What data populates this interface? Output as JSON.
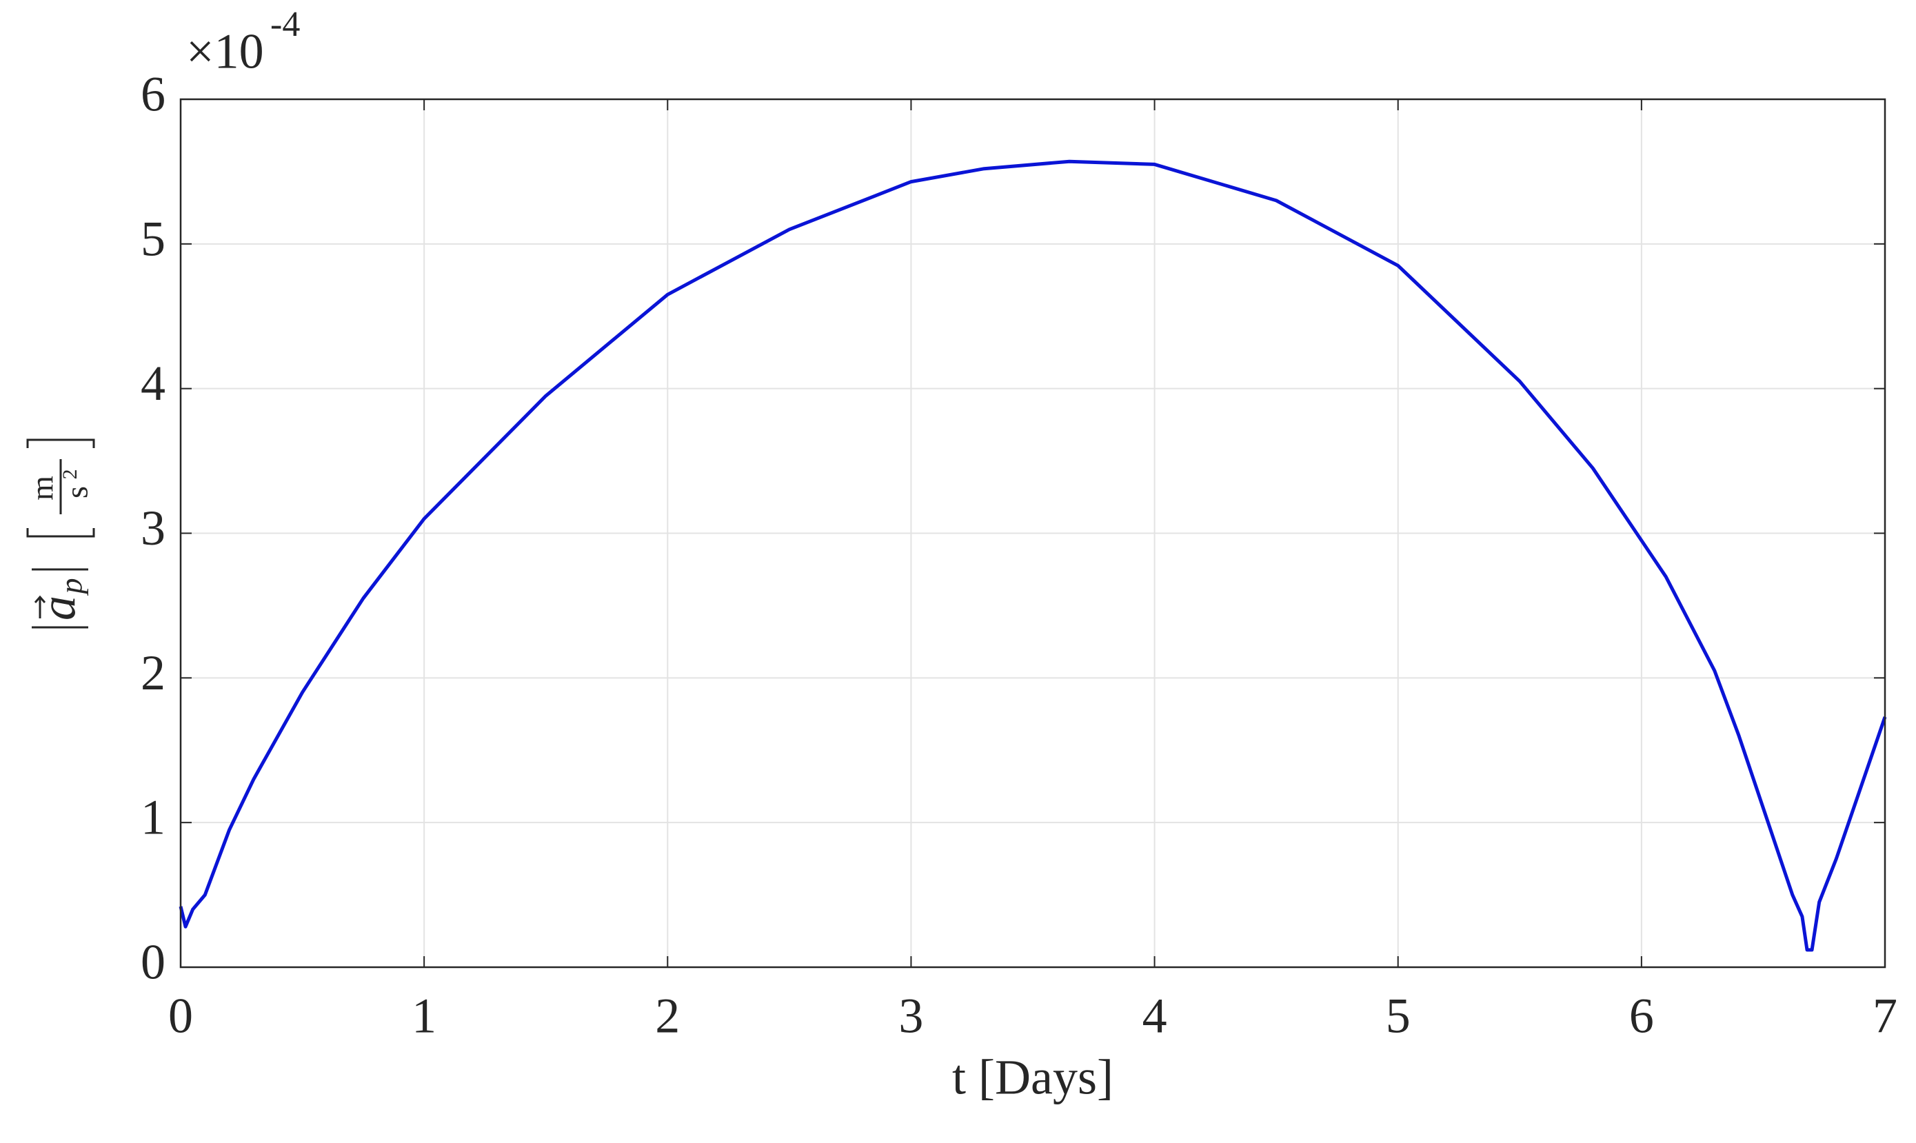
{
  "chart_data": {
    "type": "line",
    "xlabel": "t [Days]",
    "ylabel": {
      "base": "a",
      "subscript": "p",
      "unit_num": "m",
      "unit_den": "s",
      "unit_den_exp": "2"
    },
    "y_multiplier": "×10",
    "y_multiplier_exponent": "-4",
    "x": [
      0,
      0.02,
      0.05,
      0.1,
      0.2,
      0.3,
      0.5,
      0.75,
      1,
      1.5,
      2,
      2.5,
      3,
      3.3,
      3.65,
      4,
      4.5,
      5,
      5.5,
      5.8,
      6,
      6.1,
      6.3,
      6.4,
      6.5,
      6.62,
      6.66,
      6.68,
      6.7,
      6.73,
      6.8,
      7
    ],
    "series": [
      {
        "name": "a_p",
        "color": "#0a14d6",
        "values": [
          0.42,
          0.28,
          0.4,
          0.5,
          0.95,
          1.3,
          1.9,
          2.55,
          3.1,
          3.95,
          4.65,
          5.1,
          5.43,
          5.52,
          5.57,
          5.55,
          5.3,
          4.85,
          4.05,
          3.45,
          2.95,
          2.7,
          2.05,
          1.6,
          1.1,
          0.5,
          0.35,
          0.12,
          0.12,
          0.45,
          0.75,
          1.73
        ]
      }
    ],
    "xlim": [
      0,
      7
    ],
    "xticks": [
      0,
      1,
      2,
      3,
      4,
      5,
      6,
      7
    ],
    "ylim": [
      0,
      6
    ],
    "yticks": [
      0,
      1,
      2,
      3,
      4,
      5,
      6
    ],
    "grid": true
  }
}
